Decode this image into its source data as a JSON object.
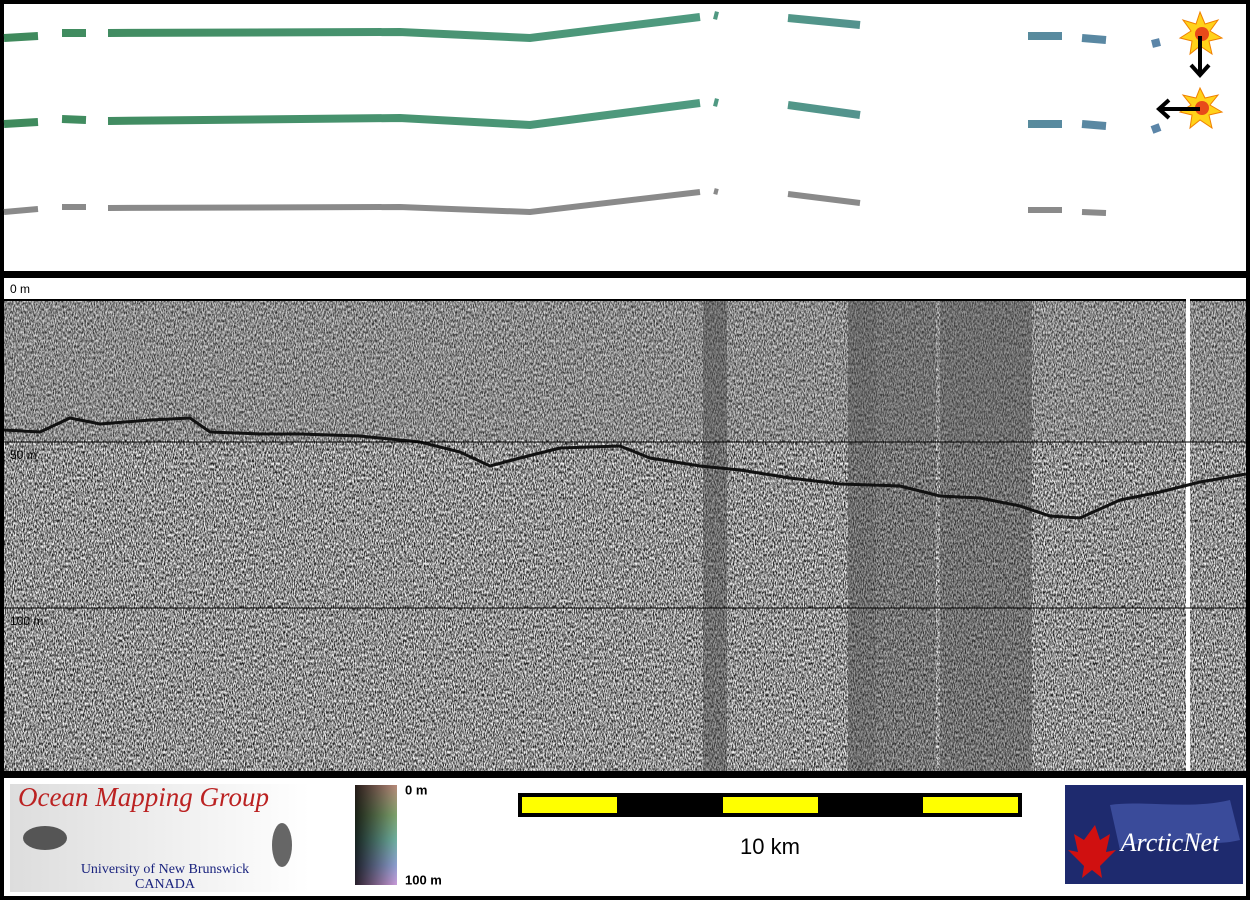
{
  "profile": {
    "depth_labels": [
      "0 m",
      "50 m",
      "100 m"
    ]
  },
  "logo": {
    "title": "Ocean Mapping Group",
    "university": "University of New Brunswick",
    "country": "CANADA"
  },
  "colorbar": {
    "top": "0 m",
    "bottom": "100 m"
  },
  "scale_bar": {
    "label": "10 km"
  },
  "partner_logo": {
    "label": "ArcticNet"
  }
}
